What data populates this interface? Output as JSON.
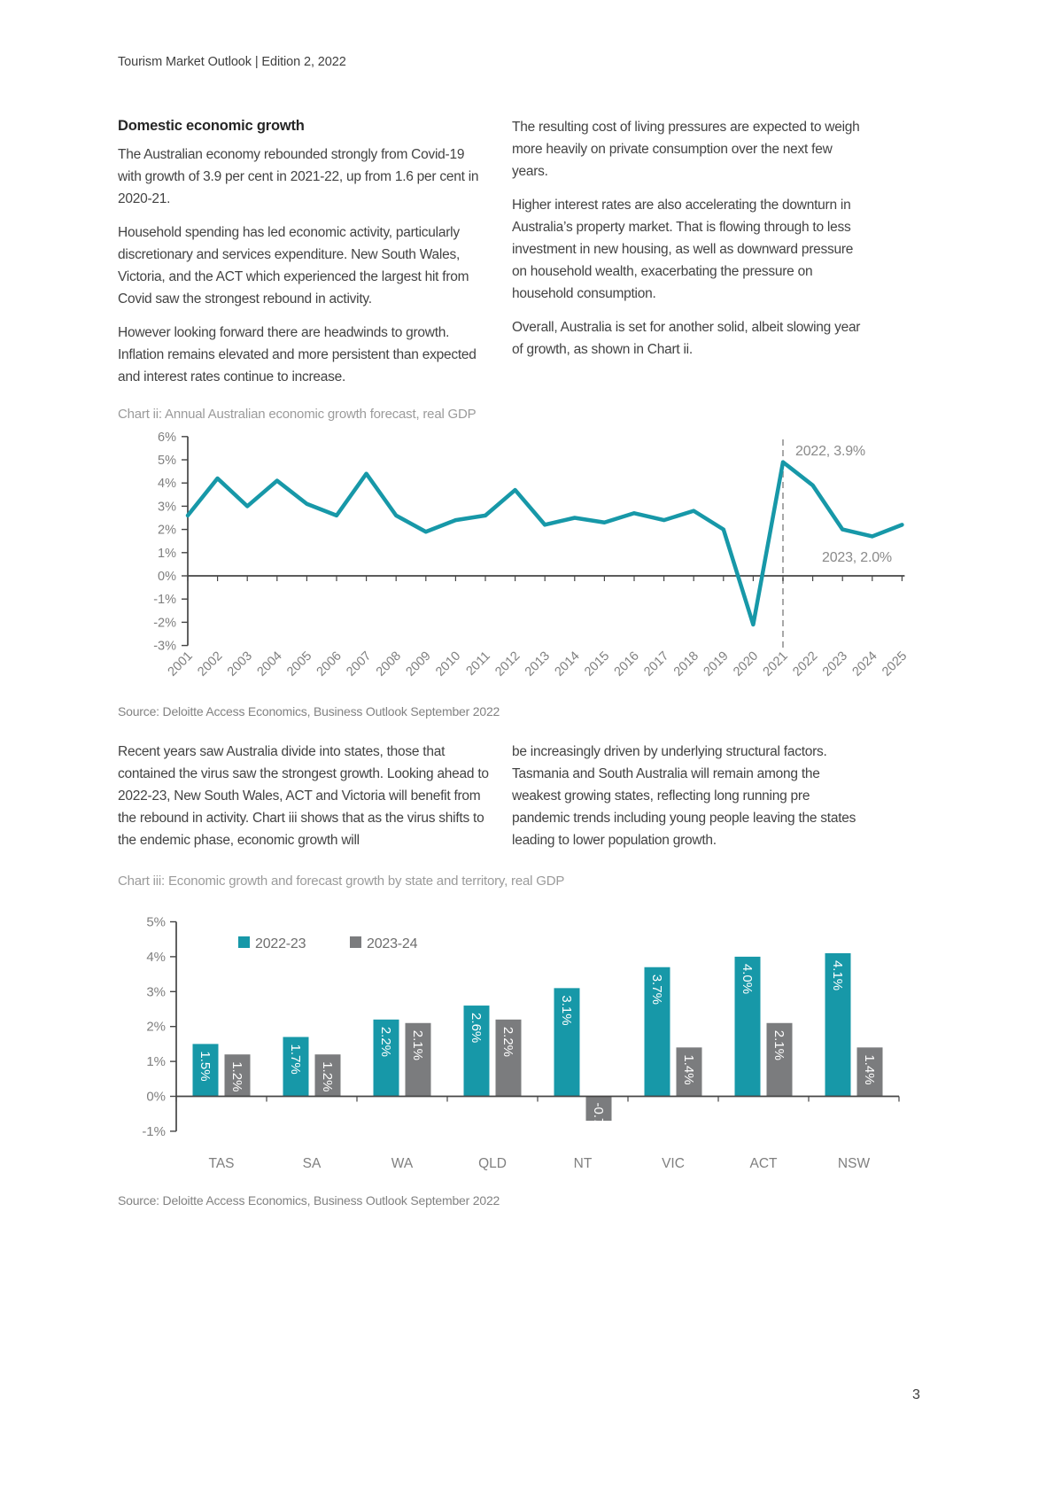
{
  "page": {
    "header": "Tourism Market Outlook | Edition 2, 2022",
    "page_number": "3"
  },
  "section": {
    "heading": "Domestic economic growth",
    "left_paragraphs": [
      "The Australian economy rebounded strongly from Covid-19 with growth of 3.9 per cent in 2021-22, up from 1.6 per cent in 2020-21.",
      "Household spending has led economic activity, particularly discretionary and services expenditure. New South Wales, Victoria, and the ACT which experienced the largest hit from Covid saw the strongest rebound in activity.",
      "However looking forward there are headwinds to growth. Inflation remains elevated and more persistent than expected and interest rates continue to increase."
    ],
    "right_paragraphs": [
      "The resulting cost of living pressures are expected to weigh more heavily on private consumption over the next few years.",
      "Higher interest rates are also accelerating the downturn in Australia’s property market. That is flowing through to less investment in new housing, as well as downward pressure on household wealth, exacerbating the pressure on household consumption.",
      "Overall, Australia is set for another solid, albeit slowing year of growth, as shown in Chart ii."
    ],
    "mid_left_paragraph": "Recent years saw Australia divide into states, those that contained the virus saw the strongest growth. Looking ahead to 2022-23, New South Wales, ACT and Victoria will benefit from the rebound in activity. Chart iii shows that as the virus shifts to the endemic phase, economic growth will",
    "mid_right_paragraph": "be increasingly driven by underlying structural factors. Tasmania and South Australia will remain among the weakest growing states, reflecting long running pre pandemic trends including young people leaving the states leading to lower population growth."
  },
  "chart_data": [
    {
      "type": "line",
      "title": "Chart ii: Annual Australian economic growth forecast, real GDP",
      "source": "Source: Deloitte Access Economics, Business Outlook September 2022",
      "x": [
        "2001",
        "2002",
        "2003",
        "2004",
        "2005",
        "2006",
        "2007",
        "2008",
        "2009",
        "2010",
        "2011",
        "2012",
        "2013",
        "2014",
        "2015",
        "2016",
        "2017",
        "2018",
        "2019",
        "2020",
        "2021",
        "2022",
        "2023",
        "2024",
        "2025"
      ],
      "values": [
        2.6,
        4.2,
        3.0,
        4.1,
        3.1,
        2.6,
        4.4,
        2.6,
        1.9,
        2.4,
        2.6,
        3.7,
        2.2,
        2.5,
        2.3,
        2.7,
        2.4,
        2.8,
        2.0,
        -2.1,
        4.9,
        3.9,
        2.0,
        1.7,
        2.2
      ],
      "ylim": [
        -3,
        6
      ],
      "ytick_step": 1,
      "ytick_suffix": "%",
      "grid": false,
      "line_color": "#1798A8",
      "dashed_line_x": "2021",
      "annotations": [
        {
          "text": "2022, 3.9%",
          "x": 768,
          "y": 64
        },
        {
          "text": "2023, 2.0%",
          "x": 798,
          "y": 184
        }
      ]
    },
    {
      "type": "bar",
      "title": "Chart iii: Economic growth and forecast growth by state and territory, real GDP",
      "source": "Source: Deloitte Access Economics, Business Outlook September 2022",
      "categories": [
        "TAS",
        "SA",
        "WA",
        "QLD",
        "NT",
        "VIC",
        "ACT",
        "NSW"
      ],
      "series": [
        {
          "name": "2022-23",
          "color": "#1798A8",
          "values": [
            1.5,
            1.7,
            2.2,
            2.6,
            3.1,
            3.7,
            4.0,
            4.1
          ]
        },
        {
          "name": "2023-24",
          "color": "#7B7C7E",
          "values": [
            1.2,
            1.2,
            2.1,
            2.2,
            -0.7,
            1.4,
            2.1,
            1.4
          ]
        }
      ],
      "bar_label_suffix": "%",
      "ylim": [
        -1,
        5
      ],
      "ytick_step": 1,
      "grid": false,
      "legend_position": "top"
    }
  ]
}
